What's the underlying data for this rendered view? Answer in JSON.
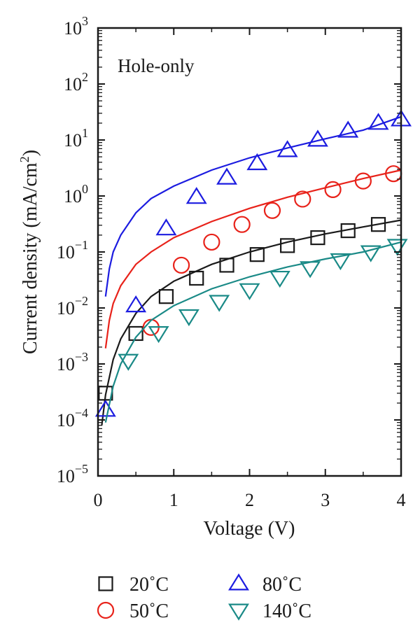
{
  "chart_data": {
    "type": "scatter",
    "xlabel": "Voltage (V)",
    "ylabel": "Current density (mA/cm",
    "ylabel_sup": "2",
    "ylabel_close": ")",
    "xlim": [
      0,
      4
    ],
    "ylim": [
      1e-05,
      1000
    ],
    "yscale": "log",
    "x_ticks": [
      {
        "value": 0,
        "label": "0"
      },
      {
        "value": 1,
        "label": "1"
      },
      {
        "value": 2,
        "label": "2"
      },
      {
        "value": 3,
        "label": "3"
      },
      {
        "value": 4,
        "label": "4"
      }
    ],
    "y_ticks": [
      {
        "value": 1e-05,
        "base": "10",
        "exp": "−5"
      },
      {
        "value": 0.0001,
        "base": "10",
        "exp": "−4"
      },
      {
        "value": 0.001,
        "base": "10",
        "exp": "−3"
      },
      {
        "value": 0.01,
        "base": "10",
        "exp": "−2"
      },
      {
        "value": 0.1,
        "base": "10",
        "exp": "−1"
      },
      {
        "value": 1,
        "base": "10",
        "exp": "0"
      },
      {
        "value": 10,
        "base": "10",
        "exp": "1"
      },
      {
        "value": 100,
        "base": "10",
        "exp": "2"
      },
      {
        "value": 1000,
        "base": "10",
        "exp": "3"
      }
    ],
    "annotation": "Hole-only",
    "legend_position": "below",
    "grid": false,
    "series": [
      {
        "name": "20˚C",
        "marker": "square",
        "color": "#1a1a1a",
        "points": [
          [
            0.1,
            0.0003
          ],
          [
            0.5,
            0.0035
          ],
          [
            0.9,
            0.016
          ],
          [
            1.3,
            0.034
          ],
          [
            1.7,
            0.058
          ],
          [
            2.1,
            0.09
          ],
          [
            2.5,
            0.13
          ],
          [
            2.9,
            0.18
          ],
          [
            3.3,
            0.24
          ],
          [
            3.7,
            0.31
          ]
        ],
        "fit": [
          [
            0.05,
            8e-05
          ],
          [
            0.1,
            0.00028
          ],
          [
            0.2,
            0.0012
          ],
          [
            0.3,
            0.0028
          ],
          [
            0.5,
            0.008
          ],
          [
            0.7,
            0.016
          ],
          [
            1.0,
            0.03
          ],
          [
            1.5,
            0.06
          ],
          [
            2.0,
            0.1
          ],
          [
            2.5,
            0.15
          ],
          [
            3.0,
            0.21
          ],
          [
            3.5,
            0.28
          ],
          [
            4.0,
            0.37
          ]
        ]
      },
      {
        "name": "50˚C",
        "marker": "circle",
        "color": "#e8221a",
        "points": [
          [
            0.7,
            0.0045
          ],
          [
            1.1,
            0.058
          ],
          [
            1.5,
            0.15
          ],
          [
            1.9,
            0.31
          ],
          [
            2.3,
            0.55
          ],
          [
            2.7,
            0.88
          ],
          [
            3.1,
            1.3
          ],
          [
            3.5,
            1.85
          ],
          [
            3.9,
            2.5
          ]
        ],
        "fit": [
          [
            0.1,
            0.0019
          ],
          [
            0.15,
            0.006
          ],
          [
            0.2,
            0.012
          ],
          [
            0.3,
            0.025
          ],
          [
            0.5,
            0.06
          ],
          [
            0.7,
            0.1
          ],
          [
            1.0,
            0.18
          ],
          [
            1.5,
            0.35
          ],
          [
            2.0,
            0.6
          ],
          [
            2.5,
            0.95
          ],
          [
            3.0,
            1.4
          ],
          [
            3.5,
            2.05
          ],
          [
            4.0,
            2.9
          ]
        ]
      },
      {
        "name": "80˚C",
        "marker": "triangle-up",
        "color": "#1c1ce0",
        "points": [
          [
            0.1,
            0.00015
          ],
          [
            0.5,
            0.011
          ],
          [
            0.9,
            0.26
          ],
          [
            1.3,
            0.95
          ],
          [
            1.7,
            2.1
          ],
          [
            2.1,
            3.8
          ],
          [
            2.5,
            6.5
          ],
          [
            2.9,
            10
          ],
          [
            3.3,
            14.5
          ],
          [
            3.7,
            20
          ],
          [
            4.0,
            23
          ]
        ],
        "fit": [
          [
            0.1,
            0.016
          ],
          [
            0.15,
            0.05
          ],
          [
            0.2,
            0.1
          ],
          [
            0.3,
            0.2
          ],
          [
            0.5,
            0.5
          ],
          [
            0.7,
            0.9
          ],
          [
            1.0,
            1.5
          ],
          [
            1.5,
            2.9
          ],
          [
            2.0,
            4.8
          ],
          [
            2.5,
            7.2
          ],
          [
            3.0,
            10.5
          ],
          [
            3.5,
            15
          ],
          [
            4.0,
            26
          ]
        ]
      },
      {
        "name": "140˚C",
        "marker": "triangle-down",
        "color": "#1a8a87",
        "points": [
          [
            0.4,
            0.00115
          ],
          [
            0.8,
            0.0036
          ],
          [
            1.2,
            0.0072
          ],
          [
            1.6,
            0.013
          ],
          [
            2.0,
            0.021
          ],
          [
            2.4,
            0.035
          ],
          [
            2.8,
            0.052
          ],
          [
            3.2,
            0.072
          ],
          [
            3.6,
            0.1
          ],
          [
            3.95,
            0.13
          ]
        ],
        "fit": [
          [
            0.1,
            9e-05
          ],
          [
            0.2,
            0.0004
          ],
          [
            0.3,
            0.001
          ],
          [
            0.5,
            0.003
          ],
          [
            0.7,
            0.006
          ],
          [
            1.0,
            0.011
          ],
          [
            1.5,
            0.022
          ],
          [
            2.0,
            0.036
          ],
          [
            2.5,
            0.054
          ],
          [
            3.0,
            0.075
          ],
          [
            3.5,
            0.1
          ],
          [
            4.0,
            0.15
          ]
        ]
      }
    ]
  }
}
